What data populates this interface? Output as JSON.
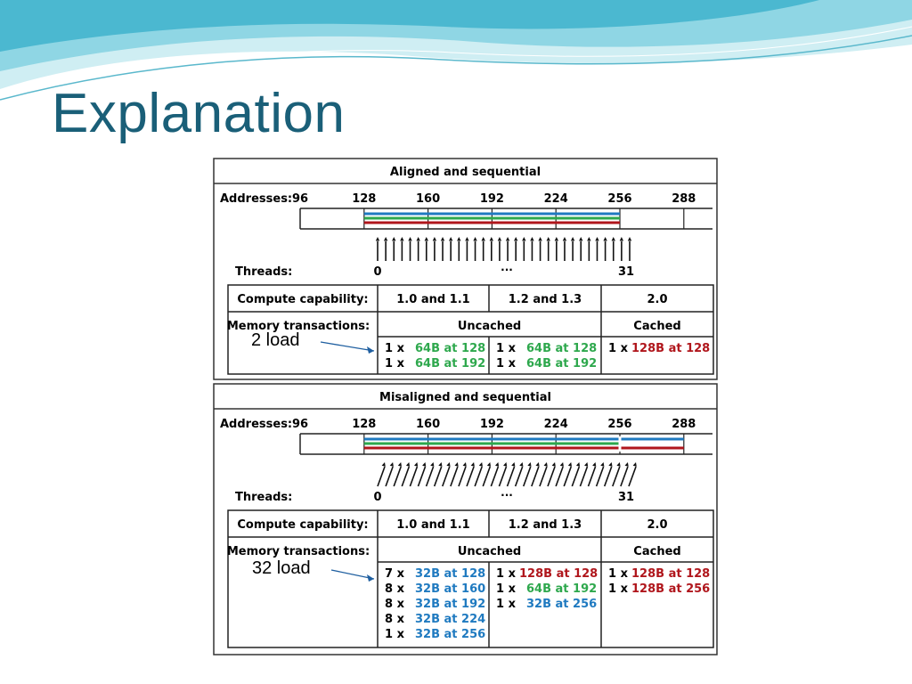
{
  "slide": {
    "title": "Explanation"
  },
  "colors": {
    "title": "#1a5f78",
    "blue": "#1f7ac0",
    "green": "#2ea84d",
    "red": "#b0161c",
    "annotation_arrow": "#1f5fa0",
    "wave_light": "#cfeef3",
    "wave_mid": "#8fd6e4",
    "wave_dark": "#3fb3cc"
  },
  "panels": [
    {
      "title": "Aligned and sequential",
      "addresses_label": "Addresses:",
      "addresses": [
        "96",
        "128",
        "160",
        "192",
        "224",
        "256",
        "288"
      ],
      "threads_label": "Threads:",
      "thread_start": "0",
      "thread_ellipsis": "···",
      "thread_end": "31",
      "arrows": "straight",
      "table": {
        "cc_label": "Compute capability:",
        "cc_values": [
          "1.0 and 1.1",
          "1.2 and 1.3",
          "2.0"
        ],
        "mt_label": "Memory transactions:",
        "uncached": "Uncached",
        "cached": "Cached",
        "col1": [
          {
            "count": "1 x",
            "value": "64B at 128",
            "color": "green"
          },
          {
            "count": "1 x",
            "value": "64B at 192",
            "color": "green"
          }
        ],
        "col2": [
          {
            "count": "1 x",
            "value": "64B at 128",
            "color": "green"
          },
          {
            "count": "1 x",
            "value": "64B at 192",
            "color": "green"
          }
        ],
        "col3": [
          {
            "count": "1 x",
            "value": "128B at 128",
            "color": "red"
          }
        ]
      },
      "annotation": "2 load"
    },
    {
      "title": "Misaligned and sequential",
      "addresses_label": "Addresses:",
      "addresses": [
        "96",
        "128",
        "160",
        "192",
        "224",
        "256",
        "288"
      ],
      "threads_label": "Threads:",
      "thread_start": "0",
      "thread_ellipsis": "···",
      "thread_end": "31",
      "arrows": "slanted",
      "table": {
        "cc_label": "Compute capability:",
        "cc_values": [
          "1.0 and 1.1",
          "1.2 and 1.3",
          "2.0"
        ],
        "mt_label": "Memory transactions:",
        "uncached": "Uncached",
        "cached": "Cached",
        "col1": [
          {
            "count": "7 x",
            "value": "32B at 128",
            "color": "blue"
          },
          {
            "count": "8 x",
            "value": "32B at 160",
            "color": "blue"
          },
          {
            "count": "8 x",
            "value": "32B at 192",
            "color": "blue"
          },
          {
            "count": "8 x",
            "value": "32B at 224",
            "color": "blue"
          },
          {
            "count": "1 x",
            "value": "32B at 256",
            "color": "blue"
          }
        ],
        "col2": [
          {
            "count": "1 x",
            "value": "128B at 128",
            "color": "red"
          },
          {
            "count": "1 x",
            "value": "64B at 192",
            "color": "green"
          },
          {
            "count": "1 x",
            "value": "32B at 256",
            "color": "blue"
          }
        ],
        "col3": [
          {
            "count": "1 x",
            "value": "128B at 128",
            "color": "red"
          },
          {
            "count": "1 x",
            "value": "128B at 256",
            "color": "red"
          }
        ]
      },
      "annotation": "32 load"
    }
  ]
}
